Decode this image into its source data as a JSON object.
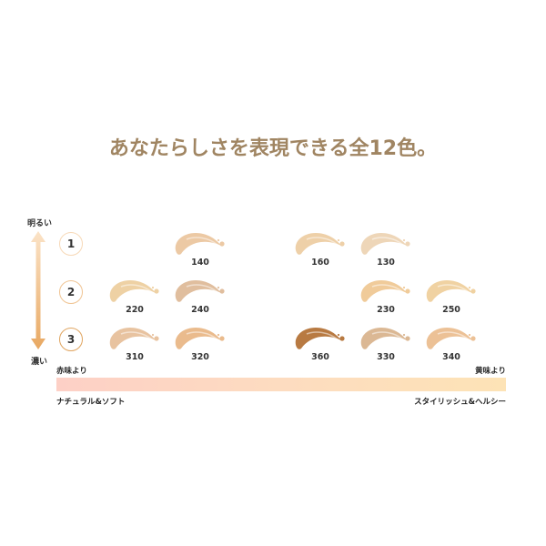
{
  "title": "あなたらしさを表現できる全12色。",
  "vertical_axis": {
    "top_label": "明るい",
    "bottom_label": "濃い"
  },
  "levels": [
    {
      "label": "1",
      "color": "#f7d9b8"
    },
    {
      "label": "2",
      "color": "#f0c493"
    },
    {
      "label": "3",
      "color": "#e0a560"
    }
  ],
  "shades": [
    {
      "number": "140",
      "color": "#ecc9a4"
    },
    {
      "number": "160",
      "color": "#eed0a8"
    },
    {
      "number": "130",
      "color": "#eed6b8"
    },
    {
      "number": "220",
      "color": "#eed1a4"
    },
    {
      "number": "240",
      "color": "#e0be9e"
    },
    {
      "number": "230",
      "color": "#f0cb9a"
    },
    {
      "number": "250",
      "color": "#f0d2a2"
    },
    {
      "number": "310",
      "color": "#e8c3a0"
    },
    {
      "number": "320",
      "color": "#eabb8d"
    },
    {
      "number": "360",
      "color": "#b87a42"
    },
    {
      "number": "330",
      "color": "#dbb894"
    },
    {
      "number": "340",
      "color": "#ecc196"
    }
  ],
  "horizontal_axis": {
    "left_label": "赤味より",
    "right_label": "黄味より",
    "left_caption": "ナチュラル&ソフト",
    "right_caption": "スタイリッシュ&ヘルシー",
    "gradient_start": "#fdd0c6",
    "gradient_end": "#fde3b6"
  }
}
